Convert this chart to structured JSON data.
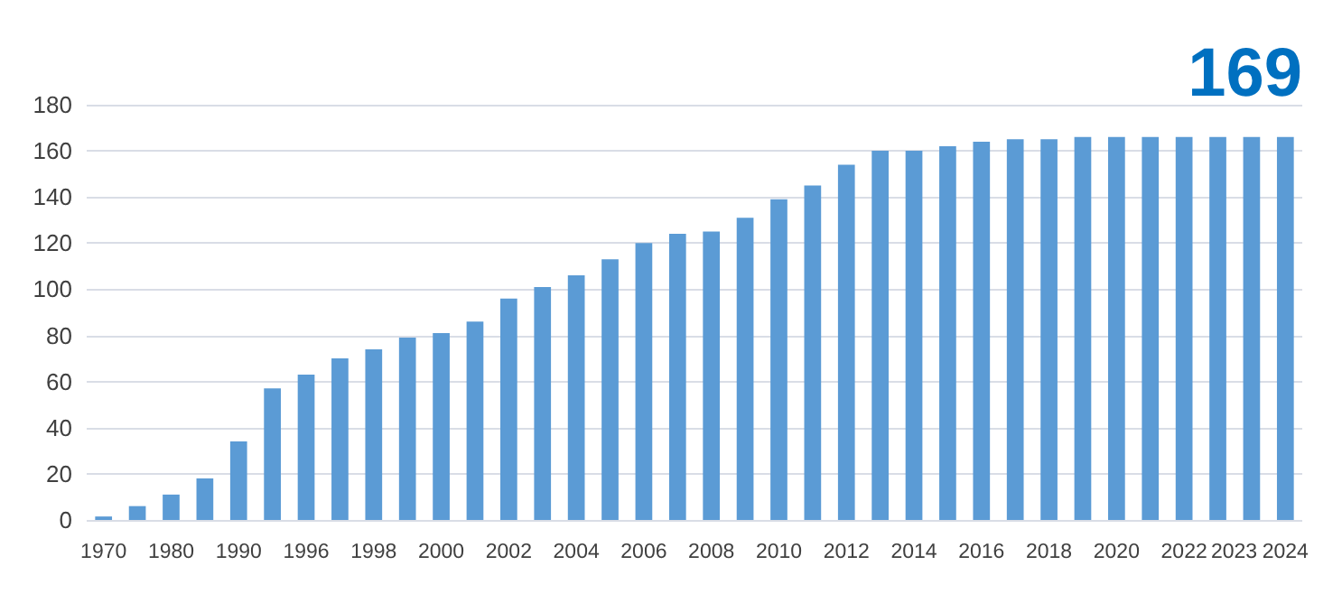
{
  "chart_data": {
    "type": "bar",
    "categories": [
      "1970",
      null,
      "1980",
      null,
      "1990",
      null,
      "1996",
      null,
      "1998",
      null,
      "2000",
      null,
      "2002",
      null,
      "2004",
      null,
      "2006",
      null,
      "2008",
      null,
      "2010",
      null,
      "2012",
      null,
      "2014",
      null,
      "2016",
      null,
      "2018",
      null,
      "2020",
      null,
      "2022",
      "2023",
      null,
      "2024"
    ],
    "values": [
      1.5,
      6,
      11,
      18,
      34,
      57,
      63,
      70,
      74,
      79,
      81,
      86,
      96,
      101,
      106,
      113,
      120,
      124,
      125,
      131,
      139,
      145,
      154,
      160,
      160,
      162,
      164,
      165,
      165,
      166,
      166,
      166,
      166,
      166,
      166,
      166
    ],
    "color": "#5b9bd5",
    "ylim": [
      0,
      180
    ],
    "yticks": [
      0,
      20,
      40,
      60,
      80,
      100,
      120,
      140,
      160,
      180
    ],
    "grid": "y",
    "annotations": [
      "169"
    ]
  }
}
